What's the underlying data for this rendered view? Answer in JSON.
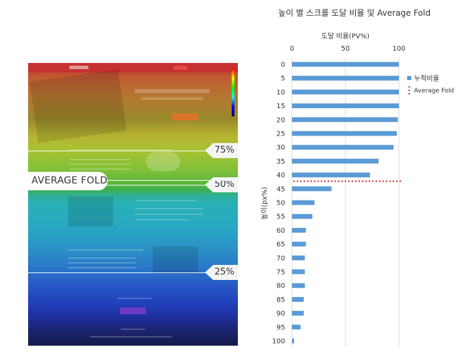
{
  "heatmap": {
    "folds": [
      {
        "label": "75%",
        "value": 75
      },
      {
        "label": "50%",
        "value": 50
      },
      {
        "label": "25%",
        "value": 25
      }
    ],
    "average_fold_label": "AVERAGE FOLD"
  },
  "chart_data": {
    "type": "bar",
    "orientation": "horizontal",
    "title": "높이 별 스크롤 도달 비율 및 Average Fold",
    "xlabel": "도달 비율(PV%)",
    "ylabel": "높이(px%)",
    "xlim": [
      0,
      100
    ],
    "xticks": [
      "0",
      "50",
      "100"
    ],
    "categories": [
      "0",
      "5",
      "10",
      "15",
      "20",
      "25",
      "30",
      "35",
      "40",
      "45",
      "50",
      "55",
      "60",
      "65",
      "70",
      "75",
      "80",
      "85",
      "90",
      "95",
      "100"
    ],
    "series": [
      {
        "name": "누적비율",
        "color": "#5b9bd5",
        "values": [
          100,
          100,
          100,
          100,
          99,
          98,
          95,
          81,
          73,
          37,
          21,
          19,
          13,
          13,
          12,
          12,
          12,
          11,
          11,
          8,
          2
        ]
      }
    ],
    "average_fold": {
      "name": "Average Fold",
      "position_category": 42.5,
      "color": "#d9262e"
    },
    "grid": "vertical",
    "legend_position": "right"
  }
}
